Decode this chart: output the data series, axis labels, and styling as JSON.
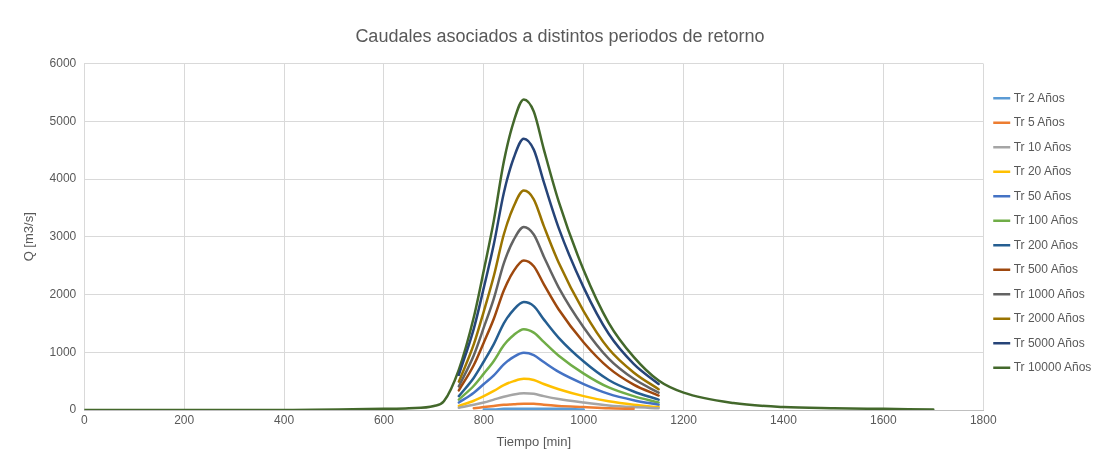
{
  "chart_data": {
    "type": "line",
    "title": "Caudales asociados a distintos periodos de retorno",
    "xlabel": "Tiempo [min]",
    "ylabel": "Q [m3/s]",
    "x": [
      0,
      200,
      400,
      600,
      650,
      700,
      720,
      750,
      780,
      800,
      820,
      840,
      860,
      880,
      900,
      920,
      950,
      1000,
      1050,
      1100,
      1150,
      1200,
      1300,
      1400,
      1500,
      1600,
      1700
    ],
    "xlim": [
      0,
      1800
    ],
    "xticks": [
      0,
      200,
      400,
      600,
      800,
      1000,
      1200,
      1400,
      1600,
      1800
    ],
    "ylim": [
      0,
      6000
    ],
    "yticks": [
      0,
      1000,
      2000,
      3000,
      4000,
      5000,
      6000
    ],
    "grid": true,
    "legend": "right",
    "marker": "none",
    "line_style": "solid",
    "series": [
      {
        "name": "Tr 2 Años",
        "color": "#5b9bd5",
        "values": [
          null,
          null,
          null,
          null,
          null,
          null,
          null,
          null,
          null,
          10,
          10,
          20,
          20,
          20,
          20,
          20,
          20,
          10,
          null,
          null,
          null,
          null,
          null,
          null,
          null,
          null,
          null
        ]
      },
      {
        "name": "Tr 5 Años",
        "color": "#ed7d31",
        "values": [
          null,
          null,
          null,
          null,
          null,
          null,
          null,
          null,
          30,
          50,
          70,
          90,
          100,
          110,
          110,
          90,
          70,
          50,
          30,
          20,
          null,
          null,
          null,
          null,
          null,
          null,
          null
        ]
      },
      {
        "name": "Tr 10 Años",
        "color": "#a5a5a5",
        "values": [
          null,
          null,
          null,
          null,
          null,
          null,
          null,
          40,
          90,
          130,
          180,
          230,
          270,
          290,
          280,
          240,
          190,
          130,
          80,
          50,
          30,
          null,
          null,
          null,
          null,
          null,
          null
        ]
      },
      {
        "name": "Tr 20 Años",
        "color": "#ffc000",
        "values": [
          null,
          null,
          null,
          null,
          null,
          null,
          null,
          70,
          160,
          240,
          330,
          430,
          500,
          540,
          520,
          450,
          360,
          240,
          150,
          90,
          50,
          null,
          null,
          null,
          null,
          null,
          null
        ]
      },
      {
        "name": "Tr 50 Años",
        "color": "#4472c4",
        "values": [
          null,
          null,
          null,
          null,
          null,
          null,
          null,
          130,
          300,
          450,
          600,
          790,
          920,
          990,
          950,
          830,
          660,
          450,
          280,
          170,
          90,
          null,
          null,
          null,
          null,
          null,
          null
        ]
      },
      {
        "name": "Tr 100 Años",
        "color": "#70ad47",
        "values": [
          null,
          null,
          null,
          null,
          null,
          null,
          null,
          180,
          420,
          630,
          850,
          1120,
          1300,
          1400,
          1340,
          1180,
          940,
          630,
          390,
          240,
          130,
          null,
          null,
          null,
          null,
          null,
          null
        ]
      },
      {
        "name": "Tr 200 Años",
        "color": "#255e91",
        "values": [
          null,
          null,
          null,
          null,
          null,
          null,
          null,
          240,
          560,
          840,
          1140,
          1500,
          1740,
          1870,
          1800,
          1570,
          1250,
          840,
          520,
          320,
          180,
          null,
          null,
          null,
          null,
          null,
          null
        ]
      },
      {
        "name": "Tr 500 Años",
        "color": "#9e480e",
        "values": [
          null,
          null,
          null,
          null,
          null,
          null,
          null,
          340,
          780,
          1170,
          1580,
          2070,
          2410,
          2590,
          2490,
          2180,
          1740,
          1170,
          730,
          440,
          250,
          null,
          null,
          null,
          null,
          null,
          null
        ]
      },
      {
        "name": "Tr 1000 Años",
        "color": "#636363",
        "values": [
          null,
          null,
          null,
          null,
          null,
          null,
          null,
          410,
          950,
          1430,
          1930,
          2540,
          2950,
          3170,
          3040,
          2660,
          2120,
          1430,
          890,
          540,
          300,
          null,
          null,
          null,
          null,
          null,
          null
        ]
      },
      {
        "name": "Tr 2000 Años",
        "color": "#997300",
        "values": [
          null,
          null,
          null,
          null,
          null,
          null,
          null,
          490,
          1140,
          1710,
          2320,
          3040,
          3530,
          3800,
          3650,
          3190,
          2550,
          1710,
          1060,
          650,
          360,
          null,
          null,
          null,
          null,
          null,
          null
        ]
      },
      {
        "name": "Tr 5000 Años",
        "color": "#264478",
        "values": [
          null,
          null,
          null,
          null,
          null,
          null,
          null,
          610,
          1410,
          2120,
          2870,
          3760,
          4370,
          4700,
          4510,
          3950,
          3150,
          2120,
          1320,
          800,
          450,
          null,
          null,
          null,
          null,
          null,
          null
        ]
      },
      {
        "name": "Tr 10000 Años",
        "color": "#43682b",
        "values": [
          0,
          0,
          0,
          20,
          30,
          70,
          150,
          700,
          1610,
          2420,
          3280,
          4300,
          5000,
          5380,
          5170,
          4520,
          3610,
          2420,
          1510,
          920,
          510,
          300,
          120,
          50,
          30,
          20,
          10
        ]
      }
    ]
  }
}
